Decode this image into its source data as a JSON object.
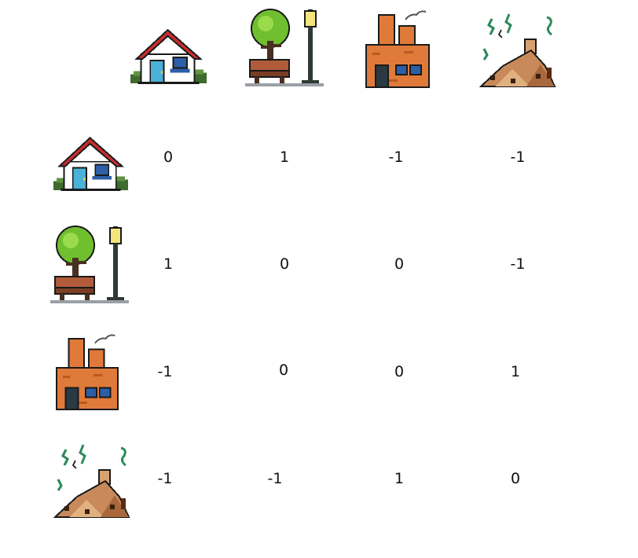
{
  "icons": {
    "house": "house-icon",
    "park": "park-bench-tree-lamp-icon",
    "factory": "factory-icon",
    "landfill": "landfill-garbage-icon"
  },
  "column_icons": [
    "house",
    "park",
    "factory",
    "landfill"
  ],
  "row_icons": [
    "house",
    "park",
    "factory",
    "landfill"
  ],
  "matrix": [
    [
      "0",
      "1",
      "-1",
      "-1"
    ],
    [
      "1",
      "0",
      "0",
      "-1"
    ],
    [
      "-1",
      "0",
      "0",
      "1"
    ],
    [
      "-1",
      "-1",
      "1",
      "0"
    ]
  ]
}
